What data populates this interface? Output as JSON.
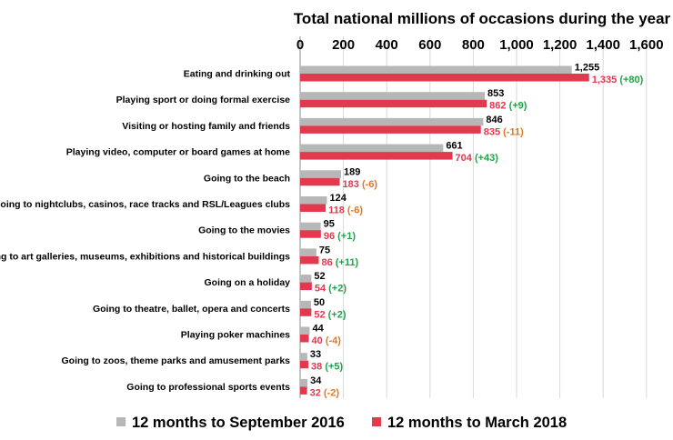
{
  "chart_data": {
    "type": "bar",
    "orientation": "horizontal",
    "title": "Total national millions of occasions during the year",
    "xlim": [
      0,
      1600
    ],
    "xticks": [
      "0",
      "200",
      "400",
      "600",
      "800",
      "1,000",
      "1,200",
      "1,400",
      "1,600"
    ],
    "tick_values": [
      0,
      200,
      400,
      600,
      800,
      1000,
      1200,
      1400,
      1600
    ],
    "grid": true,
    "legend_position": "bottom",
    "categories": [
      "Eating and drinking out",
      "Playing sport or doing formal exercise",
      "Visiting or hosting family and friends",
      "Playing video, computer or board games at home",
      "Going to the beach",
      "Going to nightclubs, casinos, race tracks and RSL/Leagues clubs",
      "Going to the movies",
      "Going to art galleries, museums, exhibitions and historical buildings",
      "Going on a holiday",
      "Going to theatre, ballet, opera and concerts",
      "Playing poker machines",
      "Going to zoos, theme parks and amusement parks",
      "Going to professional sports events"
    ],
    "series": [
      {
        "name": "12 months to September 2016",
        "color": "#b7b7b7",
        "label_color": "#000000",
        "values": [
          1255,
          853,
          846,
          661,
          189,
          124,
          95,
          75,
          52,
          50,
          44,
          33,
          34
        ],
        "labels": [
          "1,255",
          "853",
          "846",
          "661",
          "189",
          "124",
          "95",
          "75",
          "52",
          "50",
          "44",
          "33",
          "34"
        ]
      },
      {
        "name": "12 months to March 2018",
        "color": "#e2394e",
        "label_color": "#e2394e",
        "values": [
          1335,
          862,
          835,
          704,
          183,
          118,
          96,
          86,
          54,
          52,
          40,
          38,
          32
        ],
        "labels": [
          "1,335",
          "862",
          "835",
          "704",
          "183",
          "118",
          "96",
          "86",
          "54",
          "52",
          "40",
          "38",
          "32"
        ],
        "changes": [
          "(+80)",
          "(+9)",
          "(-11)",
          "(+43)",
          "(-6)",
          "(-6)",
          "(+1)",
          "(+11)",
          "(+2)",
          "(+2)",
          "(-4)",
          "(+5)",
          "(-2)"
        ]
      }
    ],
    "change_colors": {
      "positive": "#21a348",
      "negative": "#e07a1f"
    }
  }
}
